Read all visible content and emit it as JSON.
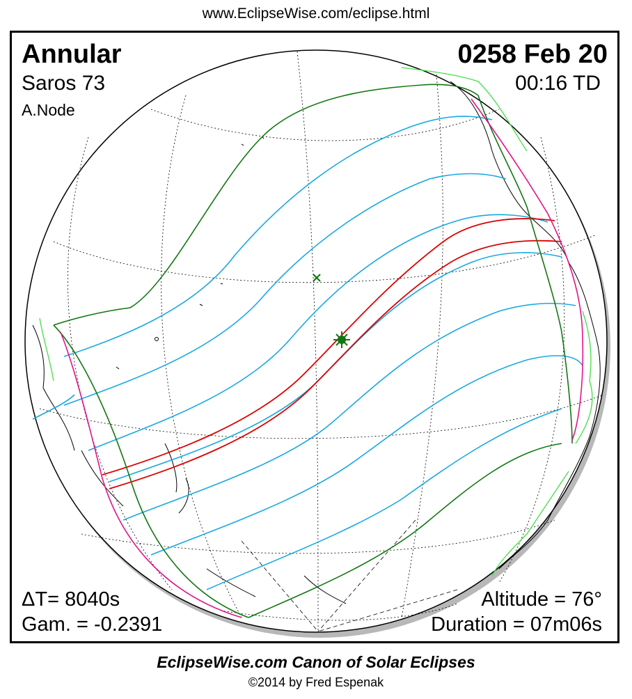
{
  "header": {
    "url": "www.EclipseWise.com/eclipse.html"
  },
  "eclipse": {
    "type": "Annular",
    "date": "0258 Feb 20",
    "saros": "Saros  73",
    "time": "00:16 TD",
    "node": "A.Node",
    "delta_t": "ΔT=   8040s",
    "gamma": "Gam. = -0.2391",
    "altitude": "Altitude = 76°",
    "duration": "Duration = 07m06s"
  },
  "colors": {
    "central_path": "#dd0000",
    "penumbral_limits": "#117711",
    "magnitude_curves": "#18a8e0",
    "sunrise_sunset": "#e0158c",
    "coastlines": "#000000",
    "land_highlight": "#44dd44"
  },
  "markers": {
    "greatest_eclipse": "green-star-icon",
    "subsolar_point": "green-x-icon"
  },
  "footer": {
    "title": "EclipseWise.com Canon of Solar Eclipses",
    "copyright": "©2014 by Fred Espenak"
  }
}
